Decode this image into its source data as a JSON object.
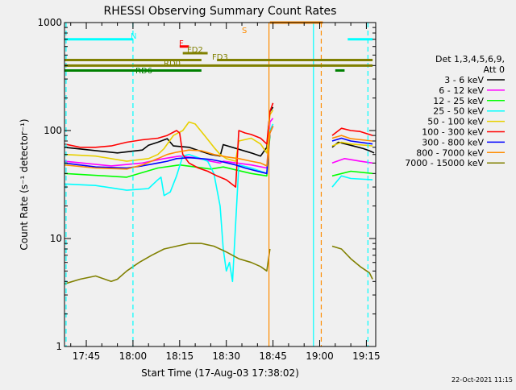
{
  "chart_data": {
    "type": "line",
    "title": "RHESSI Observing Summary Count Rates",
    "xlabel": "Start Time (17-Aug-03 17:38:02)",
    "ylabel": "Count Rate (s⁻¹ detector⁻¹)",
    "x_unit": "minutes after 17:38:02",
    "xlim": [
      0,
      100
    ],
    "ylim": [
      1,
      1000
    ],
    "yscale": "log",
    "x_ticks": [
      {
        "label": "17:45",
        "value": 7
      },
      {
        "label": "18:00",
        "value": 22
      },
      {
        "label": "18:15",
        "value": 37
      },
      {
        "label": "18:30",
        "value": 52
      },
      {
        "label": "18:45",
        "value": 67
      },
      {
        "label": "19:00",
        "value": 82
      },
      {
        "label": "19:15",
        "value": 97
      }
    ],
    "y_ticks": [
      {
        "label": "1",
        "value": 1
      },
      {
        "label": "10",
        "value": 10
      },
      {
        "label": "100",
        "value": 100
      },
      {
        "label": "1000",
        "value": 1000
      }
    ],
    "legend": {
      "header_line1": "Det 1,3,4,5,6,9,",
      "header_line2": "Att 0",
      "position": "right"
    },
    "series": [
      {
        "name": "3 - 6 keV",
        "color": "#000000",
        "points": [
          [
            0,
            70
          ],
          [
            17,
            62
          ],
          [
            25,
            66
          ],
          [
            27,
            73
          ],
          [
            30,
            78
          ],
          [
            33,
            84
          ],
          [
            35,
            72
          ],
          [
            40,
            70
          ],
          [
            44,
            64
          ],
          [
            47,
            60
          ],
          [
            50,
            58
          ],
          [
            51,
            74
          ],
          [
            60,
            62
          ],
          [
            63,
            58
          ],
          [
            65,
            70
          ],
          [
            66,
            150
          ],
          [
            67,
            165
          ],
          [
            80,
            null
          ],
          [
            86,
            70
          ],
          [
            88,
            78
          ],
          [
            92,
            73
          ],
          [
            96,
            68
          ],
          [
            98,
            65
          ],
          [
            99.5,
            62
          ]
        ]
      },
      {
        "name": "6 - 12 keV",
        "color": "#ff00ff",
        "points": [
          [
            0,
            52
          ],
          [
            15,
            47
          ],
          [
            25,
            50
          ],
          [
            32,
            55
          ],
          [
            37,
            58
          ],
          [
            42,
            56
          ],
          [
            47,
            52
          ],
          [
            50,
            50
          ],
          [
            51,
            52
          ],
          [
            60,
            48
          ],
          [
            65,
            45
          ],
          [
            66,
            120
          ],
          [
            67,
            130
          ],
          [
            80,
            null
          ],
          [
            86,
            50
          ],
          [
            90,
            55
          ],
          [
            95,
            52
          ],
          [
            99,
            50
          ]
        ]
      },
      {
        "name": "12 - 25 keV",
        "color": "#00ff00",
        "points": [
          [
            0,
            40
          ],
          [
            20,
            37
          ],
          [
            30,
            45
          ],
          [
            37,
            48
          ],
          [
            42,
            46
          ],
          [
            47,
            44
          ],
          [
            51,
            46
          ],
          [
            60,
            40
          ],
          [
            65,
            38
          ],
          [
            66,
            90
          ],
          [
            80,
            null
          ],
          [
            86,
            38
          ],
          [
            92,
            42
          ],
          [
            99,
            40
          ]
        ]
      },
      {
        "name": "25 - 50 keV",
        "color": "#00ffff",
        "points": [
          [
            0,
            32
          ],
          [
            10,
            31
          ],
          [
            20,
            28
          ],
          [
            27,
            29
          ],
          [
            30,
            35
          ],
          [
            31,
            37
          ],
          [
            32,
            25
          ],
          [
            34,
            27
          ],
          [
            36,
            38
          ],
          [
            38,
            58
          ],
          [
            40,
            60
          ],
          [
            43,
            56
          ],
          [
            46,
            52
          ],
          [
            48,
            40
          ],
          [
            50,
            20
          ],
          [
            51,
            8
          ],
          [
            52,
            5
          ],
          [
            53,
            6
          ],
          [
            54,
            4
          ],
          [
            56,
            48
          ],
          [
            60,
            45
          ],
          [
            63,
            42
          ],
          [
            65,
            40
          ],
          [
            66,
            100
          ],
          [
            67,
            115
          ],
          [
            80,
            null
          ],
          [
            86,
            30
          ],
          [
            89,
            38
          ],
          [
            92,
            36
          ],
          [
            99,
            35
          ]
        ]
      },
      {
        "name": "50 - 100 keV",
        "color": "#e8d000",
        "points": [
          [
            0,
            60
          ],
          [
            10,
            58
          ],
          [
            20,
            52
          ],
          [
            27,
            55
          ],
          [
            30,
            60
          ],
          [
            32,
            68
          ],
          [
            35,
            90
          ],
          [
            38,
            100
          ],
          [
            40,
            120
          ],
          [
            42,
            115
          ],
          [
            45,
            90
          ],
          [
            48,
            70
          ],
          [
            50,
            60
          ],
          [
            52,
            55
          ],
          [
            55,
            52
          ],
          [
            56,
            80
          ],
          [
            60,
            85
          ],
          [
            63,
            75
          ],
          [
            65,
            62
          ],
          [
            66,
            140
          ],
          [
            67,
            155
          ],
          [
            80,
            null
          ],
          [
            86,
            72
          ],
          [
            89,
            78
          ],
          [
            92,
            75
          ],
          [
            99,
            72
          ]
        ]
      },
      {
        "name": "100 - 300 keV",
        "color": "#ff0000",
        "points": [
          [
            0,
            75
          ],
          [
            5,
            70
          ],
          [
            10,
            70
          ],
          [
            15,
            72
          ],
          [
            20,
            78
          ],
          [
            25,
            82
          ],
          [
            30,
            85
          ],
          [
            33,
            90
          ],
          [
            36,
            100
          ],
          [
            37,
            95
          ],
          [
            38,
            60
          ],
          [
            40,
            50
          ],
          [
            43,
            45
          ],
          [
            46,
            42
          ],
          [
            49,
            38
          ],
          [
            52,
            35
          ],
          [
            55,
            30
          ],
          [
            56,
            100
          ],
          [
            58,
            95
          ],
          [
            60,
            92
          ],
          [
            63,
            85
          ],
          [
            65,
            75
          ],
          [
            66,
            150
          ],
          [
            67,
            180
          ],
          [
            80,
            null
          ],
          [
            86,
            90
          ],
          [
            89,
            105
          ],
          [
            92,
            100
          ],
          [
            95,
            98
          ],
          [
            99,
            90
          ]
        ]
      },
      {
        "name": "300 - 800 keV",
        "color": "#0000ff",
        "points": [
          [
            0,
            50
          ],
          [
            10,
            46
          ],
          [
            20,
            45
          ],
          [
            25,
            47
          ],
          [
            30,
            50
          ],
          [
            33,
            52
          ],
          [
            36,
            55
          ],
          [
            40,
            56
          ],
          [
            44,
            55
          ],
          [
            47,
            54
          ],
          [
            50,
            52
          ],
          [
            55,
            48
          ],
          [
            58,
            45
          ],
          [
            62,
            42
          ],
          [
            65,
            40
          ],
          [
            66,
            95
          ],
          [
            67,
            110
          ],
          [
            80,
            null
          ],
          [
            86,
            80
          ],
          [
            89,
            85
          ],
          [
            92,
            80
          ],
          [
            99,
            75
          ]
        ]
      },
      {
        "name": "800 - 7000 keV",
        "color": "#ff8c00",
        "points": [
          [
            0,
            48
          ],
          [
            10,
            45
          ],
          [
            20,
            44
          ],
          [
            25,
            48
          ],
          [
            30,
            55
          ],
          [
            33,
            60
          ],
          [
            36,
            63
          ],
          [
            40,
            66
          ],
          [
            44,
            65
          ],
          [
            48,
            60
          ],
          [
            52,
            57
          ],
          [
            56,
            55
          ],
          [
            60,
            52
          ],
          [
            63,
            50
          ],
          [
            65,
            47
          ],
          [
            66,
            95
          ],
          [
            67,
            110
          ],
          [
            80,
            null
          ],
          [
            86,
            85
          ],
          [
            89,
            90
          ],
          [
            92,
            84
          ],
          [
            99,
            80
          ]
        ]
      },
      {
        "name": "7000 - 15000 keV",
        "color": "#808000",
        "points": [
          [
            0,
            3.8
          ],
          [
            5,
            4.2
          ],
          [
            10,
            4.5
          ],
          [
            15,
            4.0
          ],
          [
            17,
            4.2
          ],
          [
            20,
            5
          ],
          [
            24,
            6
          ],
          [
            28,
            7
          ],
          [
            32,
            8
          ],
          [
            36,
            8.5
          ],
          [
            40,
            9
          ],
          [
            44,
            9
          ],
          [
            48,
            8.5
          ],
          [
            52,
            7.5
          ],
          [
            56,
            6.5
          ],
          [
            60,
            6
          ],
          [
            63,
            5.5
          ],
          [
            65,
            5
          ],
          [
            66,
            8
          ],
          [
            80,
            null
          ],
          [
            86,
            8.5
          ],
          [
            89,
            8
          ],
          [
            92,
            6.5
          ],
          [
            95,
            5.5
          ],
          [
            98,
            4.8
          ],
          [
            99,
            4.2
          ]
        ]
      }
    ],
    "segment_bars": [
      {
        "label": "N",
        "color": "#00ffff",
        "y": 700,
        "segments": [
          [
            0,
            22
          ],
          [
            91,
            99
          ]
        ]
      },
      {
        "label": "S",
        "color": "#ff8c00",
        "y": 1000,
        "segments": [
          [
            66,
            83
          ]
        ]
      },
      {
        "label": "F",
        "color": "#ff0000",
        "y": 600,
        "segments": [
          [
            37,
            40
          ]
        ]
      },
      {
        "label": "FD2",
        "color": "#808000",
        "y": 520,
        "segments": [
          [
            38,
            46
          ]
        ]
      },
      {
        "label": "FD3",
        "color": "#808000",
        "y": 450,
        "segments": [
          [
            0,
            44
          ],
          [
            49,
            99
          ]
        ]
      },
      {
        "label": "RD0",
        "color": "#808000",
        "y": 400,
        "segments": [
          [
            0,
            99
          ]
        ]
      },
      {
        "label": "RD6",
        "color": "#008000",
        "y": 360,
        "segments": [
          [
            0,
            44
          ],
          [
            87,
            90
          ]
        ]
      }
    ],
    "vertical_markers": [
      {
        "x": 0.5,
        "color": "#00ffff",
        "style": "dashed"
      },
      {
        "x": 22,
        "color": "#00ffff",
        "style": "dashed"
      },
      {
        "x": 65.7,
        "color": "#ff8c00",
        "style": "solid"
      },
      {
        "x": 80,
        "color": "#00ffff",
        "style": "solid"
      },
      {
        "x": 82.5,
        "color": "#ff8c00",
        "style": "dashed"
      },
      {
        "x": 97.5,
        "color": "#00ffff",
        "style": "dashed"
      }
    ],
    "grid": false
  },
  "footer": {
    "timestamp": "22-Oct-2021 11:15"
  }
}
